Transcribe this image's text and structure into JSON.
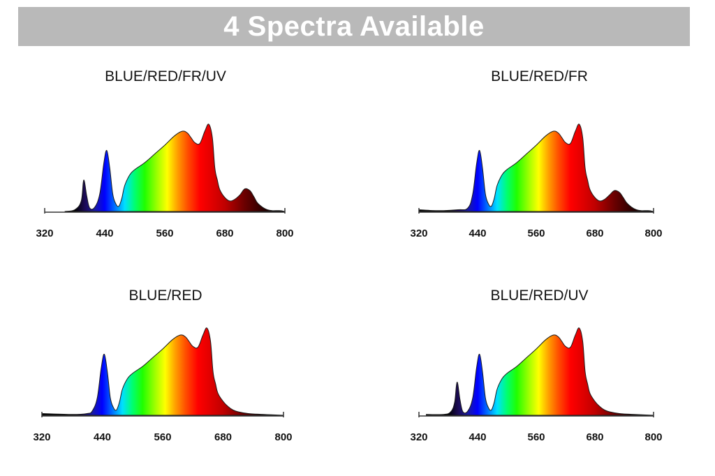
{
  "banner": {
    "title": "4 Spectra Available"
  },
  "chart_data": [
    {
      "type": "area",
      "title": "BLUE/RED/FR/UV",
      "xlim": [
        320,
        800
      ],
      "ylim": [
        0,
        1
      ],
      "xticks": [
        320,
        440,
        560,
        680,
        800
      ],
      "grid": false,
      "series": [
        {
          "x": [
            360,
            380,
            393,
            398,
            404,
            410,
            420,
            430,
            438,
            444,
            450,
            456,
            462,
            468,
            474,
            480,
            490,
            500,
            520,
            540,
            560,
            580,
            595,
            605,
            612,
            620,
            630,
            640,
            648,
            655,
            660,
            665,
            670,
            680,
            690,
            700,
            710,
            720,
            730,
            738,
            745,
            755,
            765,
            775,
            790,
            800
          ],
          "y": [
            0,
            0.02,
            0.12,
            0.36,
            0.18,
            0.04,
            0.05,
            0.2,
            0.55,
            0.7,
            0.5,
            0.2,
            0.09,
            0.06,
            0.15,
            0.3,
            0.42,
            0.48,
            0.56,
            0.66,
            0.76,
            0.87,
            0.92,
            0.9,
            0.85,
            0.79,
            0.78,
            0.92,
            1.0,
            0.85,
            0.5,
            0.36,
            0.25,
            0.16,
            0.12,
            0.14,
            0.19,
            0.26,
            0.24,
            0.17,
            0.1,
            0.05,
            0.02,
            0.01,
            0.01,
            0
          ]
        }
      ]
    },
    {
      "type": "area",
      "title": "BLUE/RED/FR",
      "xlim": [
        320,
        800
      ],
      "ylim": [
        0,
        1
      ],
      "xticks": [
        320,
        440,
        560,
        680,
        800
      ],
      "grid": false,
      "series": [
        {
          "x": [
            320,
            360,
            400,
            420,
            430,
            438,
            444,
            450,
            456,
            462,
            468,
            474,
            480,
            490,
            500,
            520,
            540,
            560,
            580,
            595,
            605,
            612,
            620,
            630,
            640,
            648,
            655,
            660,
            665,
            670,
            680,
            690,
            700,
            710,
            720,
            730,
            738,
            745,
            755,
            765,
            775,
            790,
            800
          ],
          "y": [
            0.02,
            0.01,
            0.02,
            0.04,
            0.2,
            0.55,
            0.7,
            0.5,
            0.2,
            0.09,
            0.06,
            0.15,
            0.3,
            0.42,
            0.48,
            0.56,
            0.66,
            0.76,
            0.87,
            0.92,
            0.9,
            0.85,
            0.79,
            0.78,
            0.92,
            1.0,
            0.85,
            0.5,
            0.36,
            0.25,
            0.16,
            0.12,
            0.14,
            0.19,
            0.24,
            0.22,
            0.16,
            0.1,
            0.05,
            0.02,
            0.01,
            0.01,
            0
          ]
        }
      ]
    },
    {
      "type": "area",
      "title": "BLUE/RED",
      "xlim": [
        320,
        800
      ],
      "ylim": [
        0,
        1
      ],
      "xticks": [
        320,
        440,
        560,
        680,
        800
      ],
      "grid": false,
      "series": [
        {
          "x": [
            320,
            380,
            410,
            420,
            430,
            438,
            444,
            450,
            456,
            462,
            468,
            474,
            480,
            490,
            500,
            520,
            540,
            560,
            580,
            595,
            605,
            612,
            620,
            630,
            640,
            648,
            655,
            660,
            665,
            670,
            680,
            690,
            700,
            710,
            730,
            760,
            800
          ],
          "y": [
            0.02,
            0.01,
            0.02,
            0.05,
            0.2,
            0.55,
            0.7,
            0.5,
            0.2,
            0.09,
            0.06,
            0.15,
            0.3,
            0.42,
            0.48,
            0.56,
            0.66,
            0.76,
            0.87,
            0.92,
            0.9,
            0.85,
            0.79,
            0.78,
            0.92,
            1.0,
            0.85,
            0.5,
            0.36,
            0.25,
            0.16,
            0.1,
            0.06,
            0.04,
            0.02,
            0.01,
            0
          ]
        }
      ]
    },
    {
      "type": "area",
      "title": "BLUE/RED/UV",
      "xlim": [
        320,
        800
      ],
      "ylim": [
        0,
        1
      ],
      "xticks": [
        320,
        440,
        560,
        680,
        800
      ],
      "grid": false,
      "series": [
        {
          "x": [
            335,
            370,
            385,
            393,
            398,
            404,
            410,
            420,
            430,
            438,
            444,
            450,
            456,
            462,
            468,
            474,
            480,
            490,
            500,
            520,
            540,
            560,
            580,
            595,
            605,
            612,
            620,
            630,
            640,
            648,
            655,
            660,
            665,
            670,
            680,
            690,
            700,
            710,
            730,
            760,
            800
          ],
          "y": [
            0.01,
            0.01,
            0.04,
            0.15,
            0.38,
            0.18,
            0.04,
            0.05,
            0.2,
            0.55,
            0.7,
            0.5,
            0.2,
            0.09,
            0.06,
            0.15,
            0.3,
            0.42,
            0.48,
            0.56,
            0.66,
            0.76,
            0.87,
            0.92,
            0.9,
            0.85,
            0.79,
            0.78,
            0.92,
            1.0,
            0.85,
            0.5,
            0.36,
            0.25,
            0.16,
            0.1,
            0.06,
            0.04,
            0.02,
            0.01,
            0
          ]
        }
      ]
    }
  ],
  "spectrum_colors": {
    "stops": [
      {
        "nm": 380,
        "color": "#000000"
      },
      {
        "nm": 400,
        "color": "#1b0a55"
      },
      {
        "nm": 420,
        "color": "#1a1aa0"
      },
      {
        "nm": 440,
        "color": "#0000ff"
      },
      {
        "nm": 460,
        "color": "#0070ff"
      },
      {
        "nm": 480,
        "color": "#00e0ff"
      },
      {
        "nm": 500,
        "color": "#00ff70"
      },
      {
        "nm": 520,
        "color": "#20ff00"
      },
      {
        "nm": 545,
        "color": "#a0ff00"
      },
      {
        "nm": 565,
        "color": "#ffff00"
      },
      {
        "nm": 585,
        "color": "#ffa000"
      },
      {
        "nm": 605,
        "color": "#ff5000"
      },
      {
        "nm": 630,
        "color": "#ff0000"
      },
      {
        "nm": 680,
        "color": "#c00000"
      },
      {
        "nm": 720,
        "color": "#6a0000"
      },
      {
        "nm": 760,
        "color": "#250000"
      },
      {
        "nm": 800,
        "color": "#000000"
      }
    ]
  }
}
